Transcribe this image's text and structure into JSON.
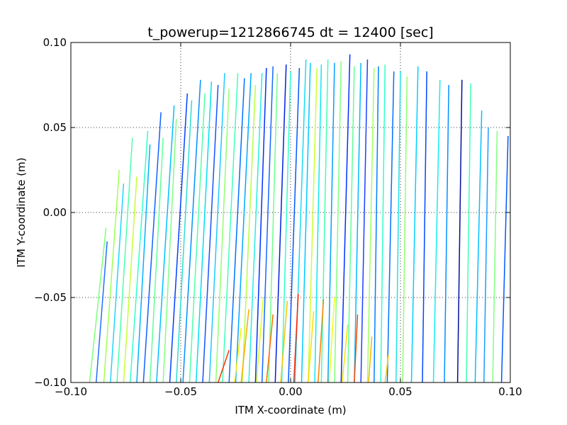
{
  "chart_data": {
    "type": "line",
    "title": "t_powerup=1212866745 dt = 12400 [sec]",
    "xlabel": "ITM X-coordinate (m)",
    "ylabel": "ITM Y-coordinate (m)",
    "xlim": [
      -0.1,
      0.1
    ],
    "ylim": [
      -0.1,
      0.1
    ],
    "xticks": [
      -0.1,
      -0.05,
      0.0,
      0.05,
      0.1
    ],
    "yticks": [
      -0.1,
      -0.05,
      0.0,
      0.05,
      0.1
    ],
    "xtick_labels": [
      "−0.10",
      "−0.05",
      "0.00",
      "0.05",
      "0.10"
    ],
    "ytick_labels": [
      "−0.10",
      "−0.05",
      "0.00",
      "0.05",
      "0.10"
    ],
    "grid": "dotted",
    "legend": "none",
    "colormap": "jet",
    "series": [
      {
        "x": [
          -0.0915,
          -0.084
        ],
        "y": [
          -0.1,
          -0.009
        ],
        "color": "#7dff7a"
      },
      {
        "x": [
          -0.0885,
          -0.0835
        ],
        "y": [
          -0.1,
          -0.017
        ],
        "color": "#2070ff"
      },
      {
        "x": [
          -0.085,
          -0.078
        ],
        "y": [
          -0.1,
          0.025
        ],
        "color": "#a0ff56"
      },
      {
        "x": [
          -0.082,
          -0.076
        ],
        "y": [
          -0.1,
          0.017
        ],
        "color": "#20d4ff"
      },
      {
        "x": [
          -0.079,
          -0.072
        ],
        "y": [
          -0.1,
          0.044
        ],
        "color": "#4dffaa"
      },
      {
        "x": [
          -0.076,
          -0.07
        ],
        "y": [
          -0.1,
          0.021
        ],
        "color": "#c4ff33"
      },
      {
        "x": [
          -0.073,
          -0.065
        ],
        "y": [
          -0.1,
          0.048
        ],
        "color": "#33ffc4"
      },
      {
        "x": [
          -0.07,
          -0.064
        ],
        "y": [
          -0.1,
          0.04
        ],
        "color": "#00b0ff"
      },
      {
        "x": [
          -0.067,
          -0.059
        ],
        "y": [
          -0.1,
          0.059
        ],
        "color": "#1060ff"
      },
      {
        "x": [
          -0.064,
          -0.058
        ],
        "y": [
          -0.1,
          0.044
        ],
        "color": "#60ff96"
      },
      {
        "x": [
          -0.061,
          -0.053
        ],
        "y": [
          -0.1,
          0.063
        ],
        "color": "#00c0ff"
      },
      {
        "x": [
          -0.058,
          -0.052
        ],
        "y": [
          -0.1,
          0.055
        ],
        "color": "#80ff80"
      },
      {
        "x": [
          -0.055,
          -0.047
        ],
        "y": [
          -0.1,
          0.07
        ],
        "color": "#0040ff"
      },
      {
        "x": [
          -0.052,
          -0.045
        ],
        "y": [
          -0.1,
          0.066
        ],
        "color": "#2ae0d0"
      },
      {
        "x": [
          -0.049,
          -0.041
        ],
        "y": [
          -0.1,
          0.078
        ],
        "color": "#0090ff"
      },
      {
        "x": [
          -0.046,
          -0.039
        ],
        "y": [
          -0.1,
          0.07
        ],
        "color": "#50ffa6"
      },
      {
        "x": [
          -0.043,
          -0.036
        ],
        "y": [
          -0.1,
          0.077
        ],
        "color": "#00e0f0"
      },
      {
        "x": [
          -0.04,
          -0.033
        ],
        "y": [
          -0.1,
          0.075
        ],
        "color": "#1850ff"
      },
      {
        "x": [
          -0.037,
          -0.03
        ],
        "y": [
          -0.1,
          0.082
        ],
        "color": "#20c8ff"
      },
      {
        "x": [
          -0.034,
          -0.028
        ],
        "y": [
          -0.1,
          0.073
        ],
        "color": "#90ff70"
      },
      {
        "x": [
          -0.031,
          -0.024
        ],
        "y": [
          -0.1,
          0.082
        ],
        "color": "#40ffb8"
      },
      {
        "x": [
          -0.028,
          -0.021
        ],
        "y": [
          -0.1,
          0.079
        ],
        "color": "#0070ff"
      },
      {
        "x": [
          -0.025,
          -0.018
        ],
        "y": [
          -0.1,
          0.082
        ],
        "color": "#00a8ff"
      },
      {
        "x": [
          -0.022,
          -0.016
        ],
        "y": [
          -0.1,
          0.075
        ],
        "color": "#b4ff42"
      },
      {
        "x": [
          -0.019,
          -0.013
        ],
        "y": [
          -0.1,
          0.082
        ],
        "color": "#24f0e0"
      },
      {
        "x": [
          -0.016,
          -0.011
        ],
        "y": [
          -0.1,
          0.085
        ],
        "color": "#0030ff"
      },
      {
        "x": [
          -0.013,
          -0.008
        ],
        "y": [
          -0.1,
          0.086
        ],
        "color": "#1468ff"
      },
      {
        "x": [
          -0.01,
          -0.006
        ],
        "y": [
          -0.1,
          0.082
        ],
        "color": "#70ff8a"
      },
      {
        "x": [
          -0.007,
          -0.002
        ],
        "y": [
          -0.1,
          0.087
        ],
        "color": "#0020e0"
      },
      {
        "x": [
          -0.004,
          0.0
        ],
        "y": [
          -0.1,
          0.083
        ],
        "color": "#30ffcc"
      },
      {
        "x": [
          -0.001,
          0.004
        ],
        "y": [
          -0.1,
          0.085
        ],
        "color": "#0058ff"
      },
      {
        "x": [
          0.002,
          0.007
        ],
        "y": [
          -0.1,
          0.09
        ],
        "color": "#18dcf0"
      },
      {
        "x": [
          0.005,
          0.009
        ],
        "y": [
          -0.1,
          0.088
        ],
        "color": "#00c8ff"
      },
      {
        "x": [
          0.008,
          0.012
        ],
        "y": [
          -0.1,
          0.085
        ],
        "color": "#ccff30"
      },
      {
        "x": [
          0.011,
          0.014
        ],
        "y": [
          -0.1,
          0.087
        ],
        "color": "#10e8f0"
      },
      {
        "x": [
          0.014,
          0.017
        ],
        "y": [
          -0.1,
          0.09
        ],
        "color": "#40ffb0"
      },
      {
        "x": [
          0.017,
          0.02
        ],
        "y": [
          -0.1,
          0.088
        ],
        "color": "#00a0ff"
      },
      {
        "x": [
          0.02,
          0.023
        ],
        "y": [
          -0.1,
          0.089
        ],
        "color": "#80ff80"
      },
      {
        "x": [
          0.023,
          0.027
        ],
        "y": [
          -0.1,
          0.093
        ],
        "color": "#0030ff"
      },
      {
        "x": [
          0.026,
          0.029
        ],
        "y": [
          -0.1,
          0.086
        ],
        "color": "#60ff96"
      },
      {
        "x": [
          0.029,
          0.032
        ],
        "y": [
          -0.1,
          0.088
        ],
        "color": "#00b8ff"
      },
      {
        "x": [
          0.032,
          0.035
        ],
        "y": [
          -0.1,
          0.09
        ],
        "color": "#1c40ff"
      },
      {
        "x": [
          0.035,
          0.038
        ],
        "y": [
          -0.1,
          0.085
        ],
        "color": "#a0ff60"
      },
      {
        "x": [
          0.038,
          0.04
        ],
        "y": [
          -0.1,
          0.086
        ],
        "color": "#0080ff"
      },
      {
        "x": [
          0.041,
          0.043
        ],
        "y": [
          -0.1,
          0.087
        ],
        "color": "#30ffc8"
      },
      {
        "x": [
          0.044,
          0.047
        ],
        "y": [
          -0.1,
          0.083
        ],
        "color": "#0070ff"
      },
      {
        "x": [
          0.048,
          0.05
        ],
        "y": [
          -0.1,
          0.083
        ],
        "color": "#20e0e8"
      },
      {
        "x": [
          0.051,
          0.053
        ],
        "y": [
          -0.1,
          0.08
        ],
        "color": "#90ff72"
      },
      {
        "x": [
          0.055,
          0.058
        ],
        "y": [
          -0.1,
          0.086
        ],
        "color": "#00d0ff"
      },
      {
        "x": [
          0.06,
          0.062
        ],
        "y": [
          -0.1,
          0.083
        ],
        "color": "#0048ff"
      },
      {
        "x": [
          0.065,
          0.068
        ],
        "y": [
          -0.1,
          0.078
        ],
        "color": "#14ecf4"
      },
      {
        "x": [
          0.07,
          0.072
        ],
        "y": [
          -0.1,
          0.075
        ],
        "color": "#0090ff"
      },
      {
        "x": [
          0.076,
          0.078
        ],
        "y": [
          -0.1,
          0.078
        ],
        "color": "#0010a0"
      },
      {
        "x": [
          0.08,
          0.082
        ],
        "y": [
          -0.1,
          0.076
        ],
        "color": "#40ffb4"
      },
      {
        "x": [
          0.084,
          0.087
        ],
        "y": [
          -0.1,
          0.06
        ],
        "color": "#00c0ff"
      },
      {
        "x": [
          0.088,
          0.09
        ],
        "y": [
          -0.1,
          0.05
        ],
        "color": "#1c9cff"
      },
      {
        "x": [
          0.092,
          0.094
        ],
        "y": [
          -0.1,
          0.048
        ],
        "color": "#80ff80"
      },
      {
        "x": [
          0.096,
          0.099
        ],
        "y": [
          -0.1,
          0.045
        ],
        "color": "#0058ff"
      },
      {
        "x": [
          -0.033,
          -0.028
        ],
        "y": [
          -0.1,
          -0.081
        ],
        "color": "#ff3000"
      },
      {
        "x": [
          -0.0255,
          -0.0225
        ],
        "y": [
          -0.1,
          -0.068
        ],
        "color": "#ffee00"
      },
      {
        "x": [
          -0.0225,
          -0.019
        ],
        "y": [
          -0.1,
          -0.057
        ],
        "color": "#ffa800"
      },
      {
        "x": [
          -0.0155,
          -0.0125
        ],
        "y": [
          -0.1,
          -0.05
        ],
        "color": "#d8ff20"
      },
      {
        "x": [
          -0.011,
          -0.008
        ],
        "y": [
          -0.1,
          -0.06
        ],
        "color": "#ff6a00"
      },
      {
        "x": [
          -0.0045,
          -0.0015
        ],
        "y": [
          -0.1,
          -0.052
        ],
        "color": "#ffc000"
      },
      {
        "x": [
          0.0015,
          0.0035
        ],
        "y": [
          -0.1,
          -0.048
        ],
        "color": "#ff2000"
      },
      {
        "x": [
          0.008,
          0.0105
        ],
        "y": [
          -0.1,
          -0.058
        ],
        "color": "#ffdc00"
      },
      {
        "x": [
          0.0125,
          0.015
        ],
        "y": [
          -0.1,
          -0.051
        ],
        "color": "#ff8000"
      },
      {
        "x": [
          0.0175,
          0.02
        ],
        "y": [
          -0.1,
          -0.05
        ],
        "color": "#ecff10"
      },
      {
        "x": [
          0.0235,
          0.026
        ],
        "y": [
          -0.1,
          -0.066
        ],
        "color": "#ffe000"
      },
      {
        "x": [
          0.029,
          0.0305
        ],
        "y": [
          -0.1,
          -0.06
        ],
        "color": "#ff4800"
      },
      {
        "x": [
          0.0355,
          0.037
        ],
        "y": [
          -0.1,
          -0.073
        ],
        "color": "#ffb400"
      },
      {
        "x": [
          0.043,
          0.0445
        ],
        "y": [
          -0.1,
          -0.084
        ],
        "color": "#ffcc00"
      }
    ]
  }
}
